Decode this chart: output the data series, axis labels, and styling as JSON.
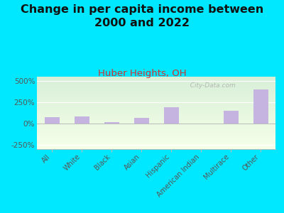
{
  "title": "Change in per capita income between\n2000 and 2022",
  "subtitle": "Huber Heights, OH",
  "categories": [
    "All",
    "White",
    "Black",
    "Asian",
    "Hispanic",
    "American Indian",
    "Multirace",
    "Other"
  ],
  "values": [
    75,
    80,
    18,
    65,
    190,
    0,
    150,
    400
  ],
  "bar_color": "#c5b3e0",
  "title_fontsize": 11.5,
  "subtitle_fontsize": 9.5,
  "subtitle_color": "#cc3333",
  "title_color": "#111111",
  "background_outer": "#00e8ff",
  "background_inner_top": "#d8efd8",
  "background_inner_bottom": "#f5ffe8",
  "ylim": [
    -300,
    550
  ],
  "yticks": [
    -250,
    0,
    250,
    500
  ],
  "ytick_labels": [
    "-250%",
    "0%",
    "250%",
    "500%"
  ],
  "watermark": "  City-Data.com"
}
